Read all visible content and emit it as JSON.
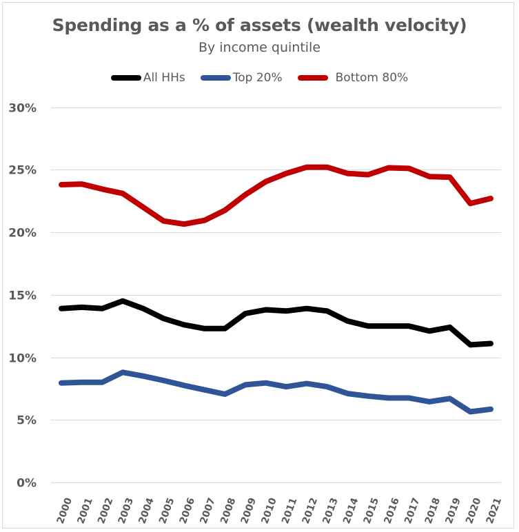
{
  "chart_data": {
    "type": "line",
    "title": "Spending as a % of assets (wealth velocity)",
    "subtitle": "By income quintile",
    "xlabel": "",
    "ylabel": "",
    "ylim": [
      0,
      30
    ],
    "y_ticks": [
      0,
      5,
      10,
      15,
      20,
      25,
      30
    ],
    "y_tick_labels": [
      "0%",
      "5%",
      "10%",
      "15%",
      "20%",
      "25%",
      "30%"
    ],
    "y_format": "percent",
    "grid": true,
    "legend_position": "top-center",
    "x": [
      "2000",
      "2001",
      "2002",
      "2003",
      "2004",
      "2005",
      "2006",
      "2007",
      "2008",
      "2009",
      "2010",
      "2011",
      "2012",
      "2013",
      "2014",
      "2015",
      "2016",
      "2017",
      "2018",
      "2019",
      "2020",
      "2021"
    ],
    "series": [
      {
        "name": "All HHs",
        "color": "#000000",
        "values": [
          13.9,
          14.0,
          13.9,
          14.5,
          13.9,
          13.1,
          12.6,
          12.3,
          12.3,
          13.5,
          13.8,
          13.7,
          13.9,
          13.7,
          12.9,
          12.5,
          12.5,
          12.5,
          12.1,
          12.4,
          11.0,
          11.1
        ]
      },
      {
        "name": "Top 20%",
        "color": "#2f5597",
        "values": [
          7.95,
          8.0,
          8.0,
          8.8,
          8.5,
          8.15,
          7.75,
          7.4,
          7.05,
          7.8,
          7.95,
          7.65,
          7.9,
          7.65,
          7.1,
          6.9,
          6.75,
          6.75,
          6.45,
          6.7,
          5.65,
          5.85
        ]
      },
      {
        "name": "Bottom 80%",
        "color": "#c00000",
        "values": [
          23.8,
          23.85,
          23.45,
          23.1,
          22.0,
          20.9,
          20.65,
          20.95,
          21.75,
          23.0,
          24.05,
          24.7,
          25.2,
          25.2,
          24.7,
          24.6,
          25.15,
          25.1,
          24.45,
          24.4,
          22.3,
          22.7
        ]
      }
    ]
  }
}
